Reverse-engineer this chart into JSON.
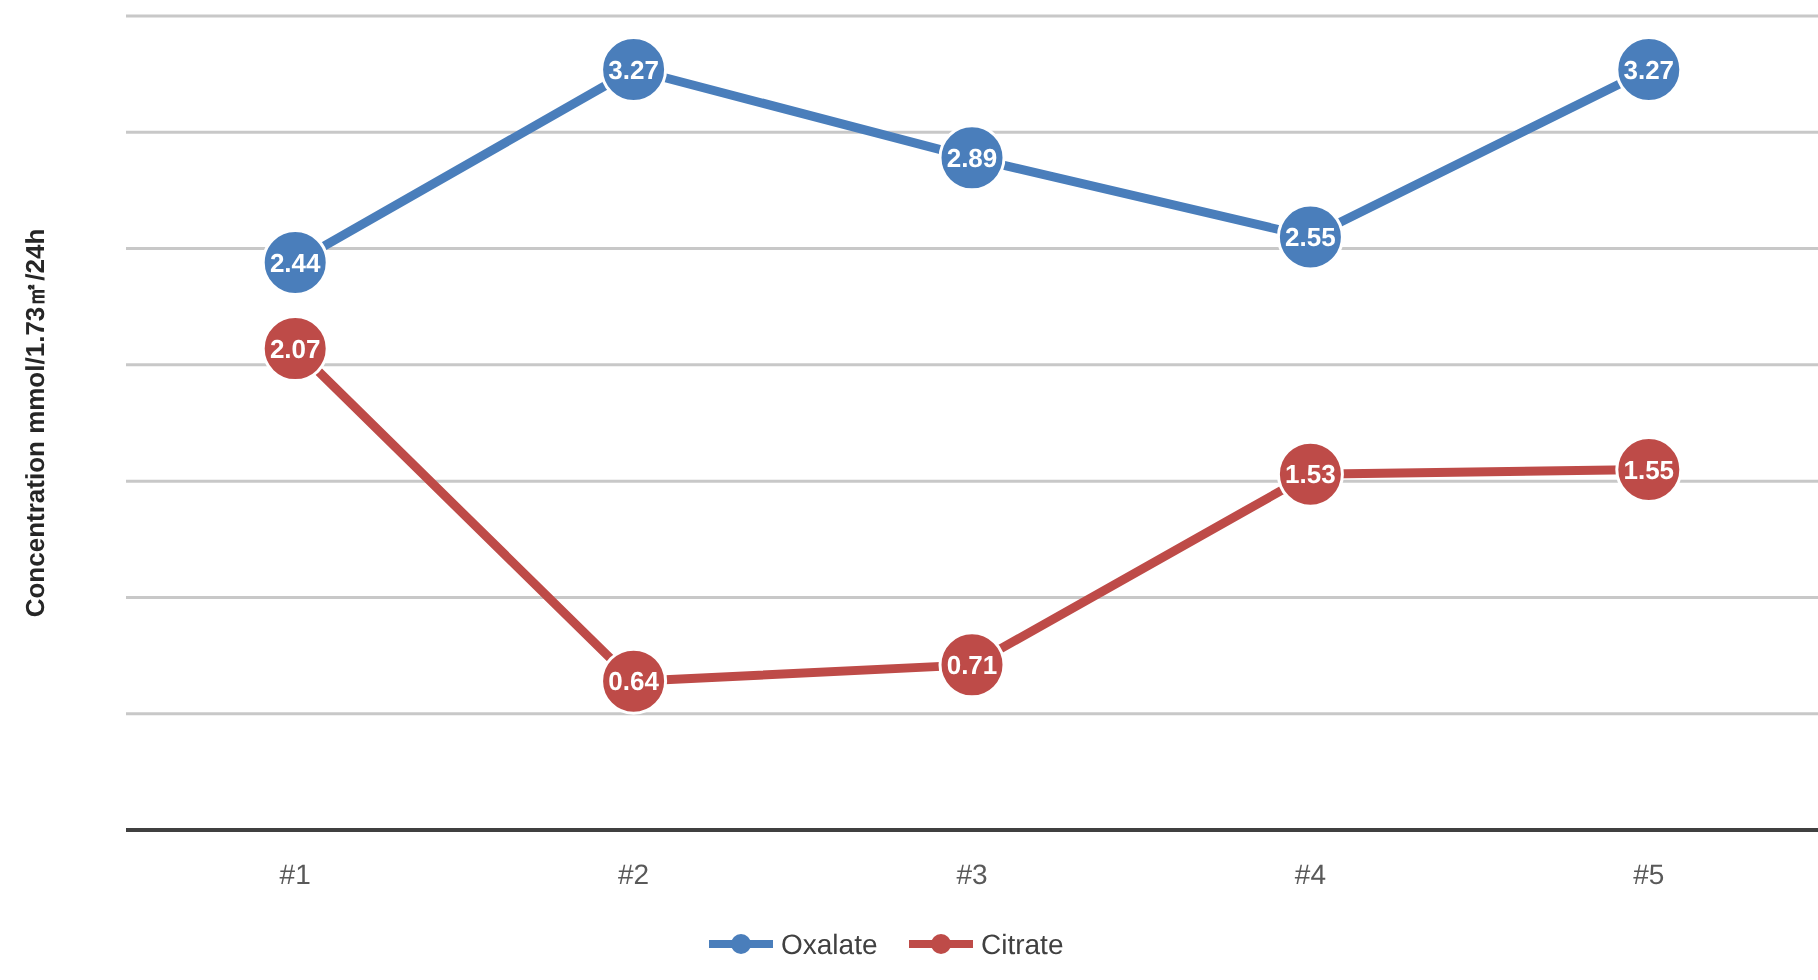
{
  "chart_data": {
    "type": "line",
    "ylabel": "Concentration mmol/1.73㎡/24h",
    "categories": [
      "#1",
      "#2",
      "#3",
      "#4",
      "#5"
    ],
    "series": [
      {
        "name": "Oxalate",
        "color": "#4a7ebb",
        "values": [
          2.44,
          3.27,
          2.89,
          2.55,
          3.27
        ]
      },
      {
        "name": "Citrate",
        "color": "#be4b48",
        "values": [
          2.07,
          0.64,
          0.71,
          1.53,
          1.55
        ]
      }
    ],
    "ylim": [
      0,
      3.5
    ],
    "yticks": [
      {
        "value": 0,
        "label": null
      },
      {
        "value": 0.5,
        "label": null
      },
      {
        "value": 1,
        "label": null
      },
      {
        "value": 1.5,
        "label": null
      },
      {
        "value": 2,
        "label": null
      },
      {
        "value": 2.5,
        "label": null
      },
      {
        "value": 3,
        "label": null
      },
      {
        "value": 3.5,
        "label": null
      }
    ],
    "tick_labels": "x",
    "grid": "y",
    "legend": "bottom",
    "marker": "circle",
    "line_style": "solid",
    "data_labels": true
  }
}
